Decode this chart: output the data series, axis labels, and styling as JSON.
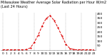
{
  "title": "Milwaukee Weather Average Solar Radiation per Hour W/m2 (Last 24 Hours)",
  "hours": [
    0,
    1,
    2,
    3,
    4,
    5,
    6,
    7,
    8,
    9,
    10,
    11,
    12,
    13,
    14,
    15,
    16,
    17,
    18,
    19,
    20,
    21,
    22,
    23
  ],
  "values": [
    0,
    0,
    0,
    0,
    0,
    0,
    2,
    20,
    80,
    160,
    260,
    340,
    370,
    320,
    240,
    150,
    60,
    15,
    2,
    0,
    0,
    0,
    0,
    0
  ],
  "line_color": "#dd0000",
  "bg_color": "#ffffff",
  "grid_color": "#999999",
  "text_color": "#000000",
  "ylim": [
    0,
    400
  ],
  "yticks": [
    50,
    100,
    150,
    200,
    250,
    300,
    350,
    400
  ],
  "xlabel_fontsize": 3.2,
  "ylabel_fontsize": 3.2,
  "title_fontsize": 3.5,
  "grid_every_n_hours": 4
}
